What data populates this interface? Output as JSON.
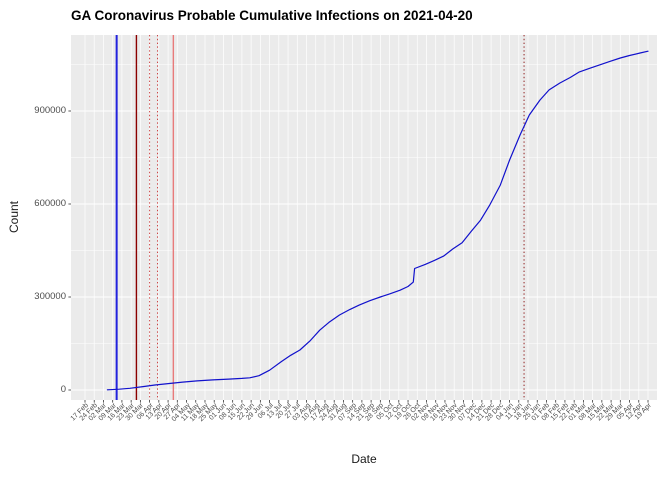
{
  "title": "GA Coronavirus Probable Cumulative Infections on 2021-04-20",
  "chart_data": {
    "type": "line",
    "title": "GA Coronavirus Probable Cumulative Infections on 2021-04-20",
    "xlabel": "Date",
    "ylabel": "Count",
    "panel_bg": "#EBEBEB",
    "grid_color": "#FFFFFF",
    "axis_text_color": "#4D4D4D",
    "legend": "none",
    "x_axis": {
      "first_tick_date": "2020-02-17",
      "tick_interval_days": 7,
      "tick_labels": [
        "17 Feb",
        "24 Feb",
        "02 Mar",
        "09 Mar",
        "16 Mar",
        "23 Mar",
        "30 Mar",
        "06 Apr",
        "13 Apr",
        "20 Apr",
        "27 Apr",
        "04 May",
        "11 May",
        "18 May",
        "25 May",
        "01 Jun",
        "08 Jun",
        "15 Jun",
        "22 Jun",
        "29 Jun",
        "06 Jul",
        "13 Jul",
        "20 Jul",
        "27 Jul",
        "03 Aug",
        "10 Aug",
        "17 Aug",
        "24 Aug",
        "31 Aug",
        "07 Sep",
        "14 Sep",
        "21 Sep",
        "28 Sep",
        "05 Oct",
        "12 Oct",
        "19 Oct",
        "26 Oct",
        "02 Nov",
        "09 Nov",
        "16 Nov",
        "23 Nov",
        "30 Nov",
        "07 Dec",
        "14 Dec",
        "21 Dec",
        "28 Dec",
        "04 Jan",
        "11 Jan",
        "18 Jan",
        "25 Jan",
        "01 Feb",
        "08 Feb",
        "15 Feb",
        "22 Feb",
        "01 Mar",
        "08 Mar",
        "15 Mar",
        "22 Mar",
        "29 Mar",
        "05 Apr",
        "12 Apr",
        "19 Apr"
      ]
    },
    "y_axis": {
      "ticks": [
        0,
        300000,
        600000,
        900000
      ],
      "tick_labels": [
        "0",
        "300000",
        "600000",
        "900000"
      ],
      "minor_ticks": [
        150000,
        450000,
        750000,
        1050000
      ],
      "range_shown": [
        0,
        1093000
      ]
    },
    "series": [
      {
        "name": "probable-cumulative-infections",
        "color": "#1111CC",
        "points": [
          [
            "2020-03-05",
            500
          ],
          [
            "2020-03-14",
            2500
          ],
          [
            "2020-03-22",
            5500
          ],
          [
            "2020-04-01",
            11000
          ],
          [
            "2020-04-10",
            16000
          ],
          [
            "2020-04-20",
            20500
          ],
          [
            "2020-05-01",
            25500
          ],
          [
            "2020-05-12",
            29500
          ],
          [
            "2020-05-24",
            32500
          ],
          [
            "2020-06-05",
            35000
          ],
          [
            "2020-06-15",
            37500
          ],
          [
            "2020-06-21",
            39500
          ],
          [
            "2020-06-28",
            46000
          ],
          [
            "2020-07-06",
            64000
          ],
          [
            "2020-07-15",
            92000
          ],
          [
            "2020-07-22",
            112000
          ],
          [
            "2020-07-29",
            129000
          ],
          [
            "2020-08-06",
            160000
          ],
          [
            "2020-08-13",
            193000
          ],
          [
            "2020-08-20",
            218000
          ],
          [
            "2020-08-28",
            242000
          ],
          [
            "2020-09-05",
            260000
          ],
          [
            "2020-09-12",
            274000
          ],
          [
            "2020-09-20",
            288000
          ],
          [
            "2020-09-28",
            300000
          ],
          [
            "2020-10-05",
            310000
          ],
          [
            "2020-10-13",
            322000
          ],
          [
            "2020-10-19",
            334000
          ],
          [
            "2020-10-23",
            348000
          ],
          [
            "2020-10-24",
            392000
          ],
          [
            "2020-11-01",
            405000
          ],
          [
            "2020-11-08",
            418000
          ],
          [
            "2020-11-15",
            432000
          ],
          [
            "2020-11-22",
            455000
          ],
          [
            "2020-11-29",
            475000
          ],
          [
            "2020-12-06",
            512000
          ],
          [
            "2020-12-13",
            548000
          ],
          [
            "2020-12-20",
            597000
          ],
          [
            "2020-12-28",
            661000
          ],
          [
            "2021-01-04",
            742000
          ],
          [
            "2021-01-12",
            823000
          ],
          [
            "2021-01-19",
            887000
          ],
          [
            "2021-01-27",
            935000
          ],
          [
            "2021-02-03",
            968000
          ],
          [
            "2021-02-11",
            990000
          ],
          [
            "2021-02-19",
            1008000
          ],
          [
            "2021-02-26",
            1026000
          ],
          [
            "2021-03-06",
            1038000
          ],
          [
            "2021-03-13",
            1048000
          ],
          [
            "2021-03-21",
            1060000
          ],
          [
            "2021-03-29",
            1071000
          ],
          [
            "2021-04-05",
            1079000
          ],
          [
            "2021-04-13",
            1087000
          ],
          [
            "2021-04-19",
            1093000
          ]
        ]
      }
    ],
    "vlines": [
      {
        "date": "2020-03-12",
        "color": "#2222DD",
        "style": "solid",
        "width": 2
      },
      {
        "date": "2020-03-27",
        "color": "#8B0000",
        "style": "solid",
        "width": 1.4
      },
      {
        "date": "2020-04-06",
        "color": "#CC4444",
        "style": "dotted",
        "width": 1
      },
      {
        "date": "2020-04-12",
        "color": "#CC4444",
        "style": "dotted",
        "width": 1
      },
      {
        "date": "2020-04-24",
        "color": "#E87A7A",
        "style": "solid",
        "width": 1.4
      },
      {
        "date": "2021-01-15",
        "color": "#993333",
        "style": "dotted",
        "width": 1.1
      }
    ]
  }
}
